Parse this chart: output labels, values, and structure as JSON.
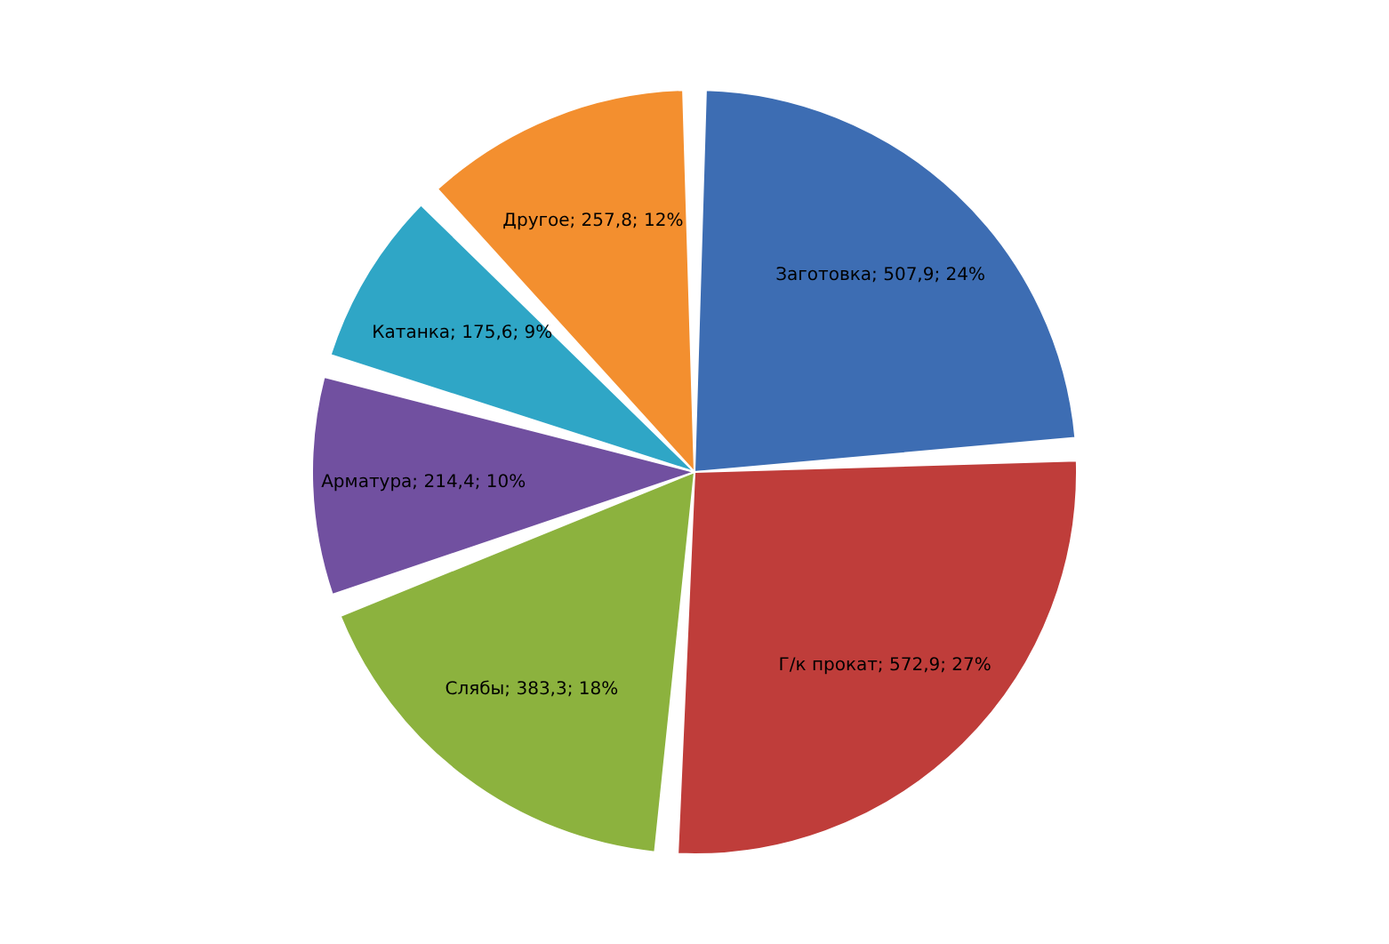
{
  "chart_data": {
    "type": "pie",
    "categories": [
      "Заготовка",
      "Г/к прокат",
      "Слябы",
      "Арматура",
      "Катанка",
      "Другое"
    ],
    "values": [
      507.9,
      572.9,
      383.3,
      214.4,
      175.6,
      257.8
    ],
    "value_labels": [
      "507,9; 24%",
      "572,9; 27%",
      "383,3; 18%",
      "214,4; 10%",
      "175,6; 9%",
      "257,8; 12%"
    ],
    "colors": [
      "#3d6db3",
      "#bf3d3a",
      "#8cb23e",
      "#7150a0",
      "#2fa6c6",
      "#f38f2f"
    ]
  }
}
